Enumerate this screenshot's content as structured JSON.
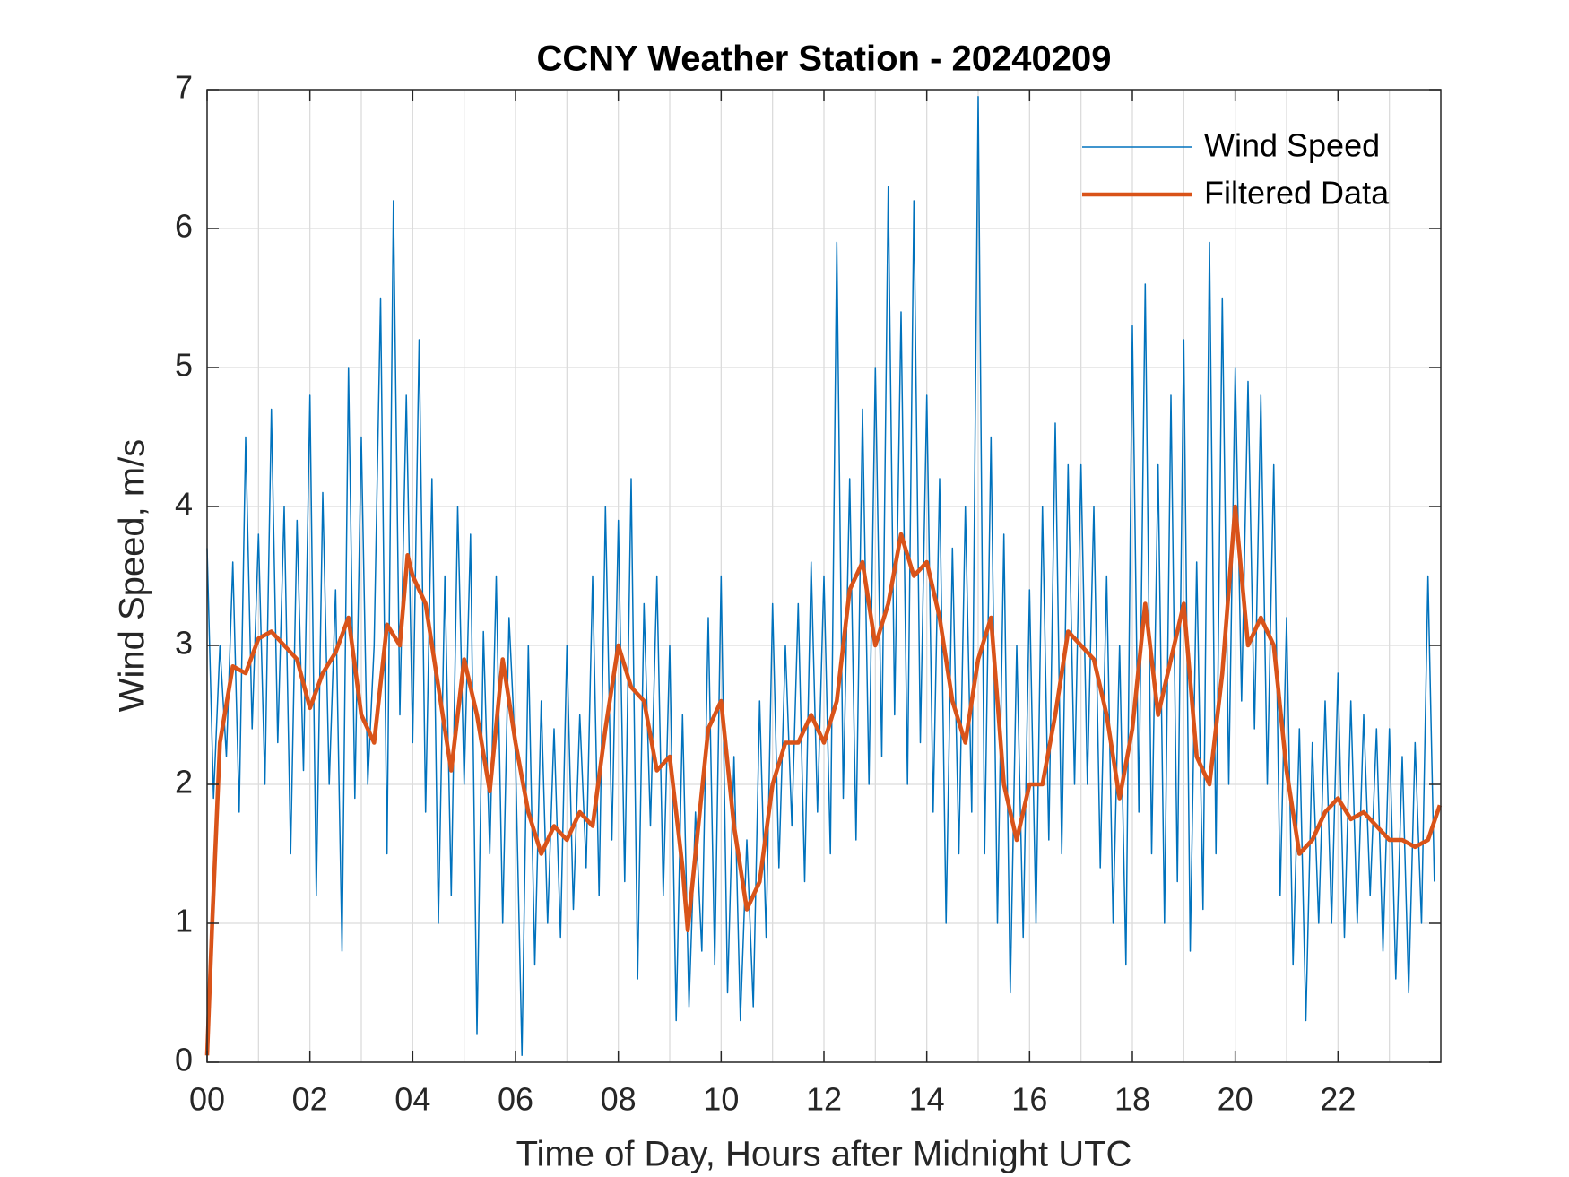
{
  "chart_data": {
    "type": "line",
    "title": "CCNY Weather Station - 20240209",
    "x_label": "Time of Day, Hours after Midnight UTC",
    "y_label": "Wind Speed, m/s",
    "xlim": [
      0,
      24
    ],
    "ylim": [
      0,
      7
    ],
    "xticks": [
      {
        "value": 0,
        "label": "00"
      },
      {
        "value": 2,
        "label": "02"
      },
      {
        "value": 4,
        "label": "04"
      },
      {
        "value": 6,
        "label": "06"
      },
      {
        "value": 8,
        "label": "08"
      },
      {
        "value": 10,
        "label": "10"
      },
      {
        "value": 12,
        "label": "12"
      },
      {
        "value": 14,
        "label": "14"
      },
      {
        "value": 16,
        "label": "16"
      },
      {
        "value": 18,
        "label": "18"
      },
      {
        "value": 20,
        "label": "20"
      },
      {
        "value": 22,
        "label": "22"
      }
    ],
    "x_minor_ticks": [
      1,
      3,
      5,
      7,
      9,
      11,
      13,
      15,
      17,
      19,
      21,
      23
    ],
    "yticks": [
      0,
      1,
      2,
      3,
      4,
      5,
      6,
      7
    ],
    "grid": true,
    "legend": "upper right",
    "series": [
      {
        "name": "Wind Speed",
        "color": "#0072bd",
        "linewidth": 1.3,
        "x": [
          0,
          0.125,
          0.25,
          0.375,
          0.5,
          0.625,
          0.75,
          0.875,
          1,
          1.125,
          1.25,
          1.375,
          1.5,
          1.625,
          1.75,
          1.875,
          2,
          2.125,
          2.25,
          2.375,
          2.5,
          2.625,
          2.75,
          2.875,
          3,
          3.125,
          3.25,
          3.375,
          3.5,
          3.625,
          3.75,
          3.875,
          4,
          4.125,
          4.25,
          4.375,
          4.5,
          4.625,
          4.75,
          4.875,
          5,
          5.125,
          5.25,
          5.375,
          5.5,
          5.625,
          5.75,
          5.875,
          6,
          6.125,
          6.25,
          6.375,
          6.5,
          6.625,
          6.75,
          6.875,
          7,
          7.125,
          7.25,
          7.375,
          7.5,
          7.625,
          7.75,
          7.875,
          8,
          8.125,
          8.25,
          8.375,
          8.5,
          8.625,
          8.75,
          8.875,
          9,
          9.125,
          9.25,
          9.375,
          9.5,
          9.625,
          9.75,
          9.875,
          10,
          10.125,
          10.25,
          10.375,
          10.5,
          10.625,
          10.75,
          10.875,
          11,
          11.125,
          11.25,
          11.375,
          11.5,
          11.625,
          11.75,
          11.875,
          12,
          12.125,
          12.25,
          12.375,
          12.5,
          12.625,
          12.75,
          12.875,
          13,
          13.125,
          13.25,
          13.375,
          13.5,
          13.625,
          13.75,
          13.875,
          14,
          14.125,
          14.25,
          14.375,
          14.5,
          14.625,
          14.75,
          14.875,
          15,
          15.125,
          15.25,
          15.375,
          15.5,
          15.625,
          15.75,
          15.875,
          16,
          16.125,
          16.25,
          16.375,
          16.5,
          16.625,
          16.75,
          16.875,
          17,
          17.125,
          17.25,
          17.375,
          17.5,
          17.625,
          17.75,
          17.875,
          18,
          18.125,
          18.25,
          18.375,
          18.5,
          18.625,
          18.75,
          18.875,
          19,
          19.125,
          19.25,
          19.375,
          19.5,
          19.625,
          19.75,
          19.875,
          20,
          20.125,
          20.25,
          20.375,
          20.5,
          20.625,
          20.75,
          20.875,
          21,
          21.125,
          21.25,
          21.375,
          21.5,
          21.625,
          21.75,
          21.875,
          22,
          22.125,
          22.25,
          22.375,
          22.5,
          22.625,
          22.75,
          22.875,
          23,
          23.125,
          23.25,
          23.375,
          23.5,
          23.625,
          23.75,
          23.875
        ],
        "values": [
          3.7,
          1.9,
          3.0,
          2.2,
          3.6,
          1.8,
          4.5,
          2.4,
          3.8,
          2.0,
          4.7,
          2.3,
          4.0,
          1.5,
          3.9,
          2.1,
          4.8,
          1.2,
          4.1,
          2.0,
          3.4,
          0.8,
          5.0,
          1.9,
          4.5,
          2.0,
          3.0,
          5.5,
          1.5,
          6.2,
          2.5,
          4.8,
          2.3,
          5.2,
          1.8,
          4.2,
          1.0,
          3.5,
          1.2,
          4.0,
          2.0,
          3.8,
          0.2,
          3.1,
          1.5,
          3.5,
          1.0,
          3.2,
          2.2,
          0.05,
          3.0,
          0.7,
          2.6,
          1.0,
          2.4,
          0.9,
          3.0,
          1.1,
          2.5,
          1.4,
          3.5,
          1.2,
          4.0,
          1.6,
          3.9,
          1.3,
          4.2,
          0.6,
          3.3,
          1.7,
          3.5,
          1.2,
          3.0,
          0.3,
          2.5,
          0.4,
          1.8,
          0.8,
          3.2,
          0.7,
          3.5,
          0.5,
          2.2,
          0.3,
          1.6,
          0.4,
          2.6,
          0.9,
          3.3,
          1.4,
          3.0,
          1.7,
          3.3,
          1.3,
          3.6,
          1.8,
          3.5,
          1.5,
          5.9,
          1.9,
          4.2,
          1.6,
          4.7,
          2.0,
          5.0,
          2.2,
          6.3,
          2.5,
          5.4,
          2.0,
          6.2,
          2.3,
          4.8,
          1.8,
          4.2,
          1.0,
          3.7,
          1.5,
          4.0,
          1.8,
          6.95,
          1.5,
          4.5,
          1.0,
          3.8,
          0.5,
          3.0,
          0.9,
          3.4,
          1.0,
          4.0,
          1.6,
          4.6,
          1.5,
          4.3,
          2.0,
          4.3,
          2.0,
          4.0,
          1.4,
          3.5,
          1.0,
          3.0,
          0.7,
          5.3,
          1.8,
          5.6,
          1.5,
          4.3,
          1.0,
          4.8,
          1.3,
          5.2,
          0.8,
          3.6,
          1.1,
          5.9,
          1.5,
          5.5,
          2.0,
          5.0,
          2.6,
          4.9,
          2.4,
          4.8,
          2.0,
          4.3,
          1.2,
          3.2,
          0.7,
          2.4,
          0.3,
          2.3,
          1.0,
          2.6,
          1.0,
          2.8,
          0.9,
          2.6,
          1.0,
          2.5,
          1.2,
          2.4,
          0.8,
          2.4,
          0.6,
          2.2,
          0.5,
          2.3,
          1.0,
          3.5,
          1.3
        ]
      },
      {
        "name": "Filtered Data",
        "color": "#d95319",
        "linewidth": 4,
        "x": [
          0,
          0.1,
          0.25,
          0.5,
          0.75,
          1,
          1.25,
          1.5,
          1.75,
          2,
          2.25,
          2.5,
          2.75,
          3,
          3.25,
          3.5,
          3.75,
          3.9,
          4,
          4.25,
          4.5,
          4.75,
          5,
          5.25,
          5.5,
          5.75,
          6,
          6.25,
          6.5,
          6.75,
          7,
          7.25,
          7.5,
          7.75,
          8,
          8.25,
          8.5,
          8.75,
          9,
          9.25,
          9.35,
          9.5,
          9.75,
          10,
          10.25,
          10.5,
          10.75,
          11,
          11.25,
          11.5,
          11.75,
          12,
          12.25,
          12.5,
          12.75,
          13,
          13.25,
          13.5,
          13.75,
          14,
          14.25,
          14.5,
          14.75,
          15,
          15.25,
          15.5,
          15.75,
          16,
          16.25,
          16.5,
          16.75,
          17,
          17.25,
          17.5,
          17.75,
          18,
          18.25,
          18.5,
          18.75,
          19,
          19.25,
          19.5,
          19.75,
          20,
          20.25,
          20.5,
          20.75,
          21,
          21.25,
          21.5,
          21.75,
          22,
          22.25,
          22.5,
          22.75,
          23,
          23.25,
          23.5,
          23.75,
          23.98
        ],
        "values": [
          0.05,
          1.0,
          2.3,
          2.85,
          2.8,
          3.05,
          3.1,
          3.0,
          2.9,
          2.55,
          2.8,
          2.95,
          3.2,
          2.5,
          2.3,
          3.15,
          3.0,
          3.65,
          3.5,
          3.3,
          2.7,
          2.1,
          2.9,
          2.5,
          1.95,
          2.9,
          2.3,
          1.8,
          1.5,
          1.7,
          1.6,
          1.8,
          1.7,
          2.4,
          3.0,
          2.7,
          2.6,
          2.1,
          2.2,
          1.4,
          0.95,
          1.5,
          2.4,
          2.6,
          1.7,
          1.1,
          1.3,
          2.0,
          2.3,
          2.3,
          2.5,
          2.3,
          2.6,
          3.4,
          3.6,
          3.0,
          3.3,
          3.8,
          3.5,
          3.6,
          3.2,
          2.6,
          2.3,
          2.9,
          3.2,
          2.0,
          1.6,
          2.0,
          2.0,
          2.5,
          3.1,
          3.0,
          2.9,
          2.5,
          1.9,
          2.4,
          3.3,
          2.5,
          2.9,
          3.3,
          2.2,
          2.0,
          2.8,
          4.0,
          3.0,
          3.2,
          3.0,
          2.1,
          1.5,
          1.6,
          1.8,
          1.9,
          1.75,
          1.8,
          1.7,
          1.6,
          1.6,
          1.55,
          1.6,
          1.85
        ]
      }
    ]
  }
}
